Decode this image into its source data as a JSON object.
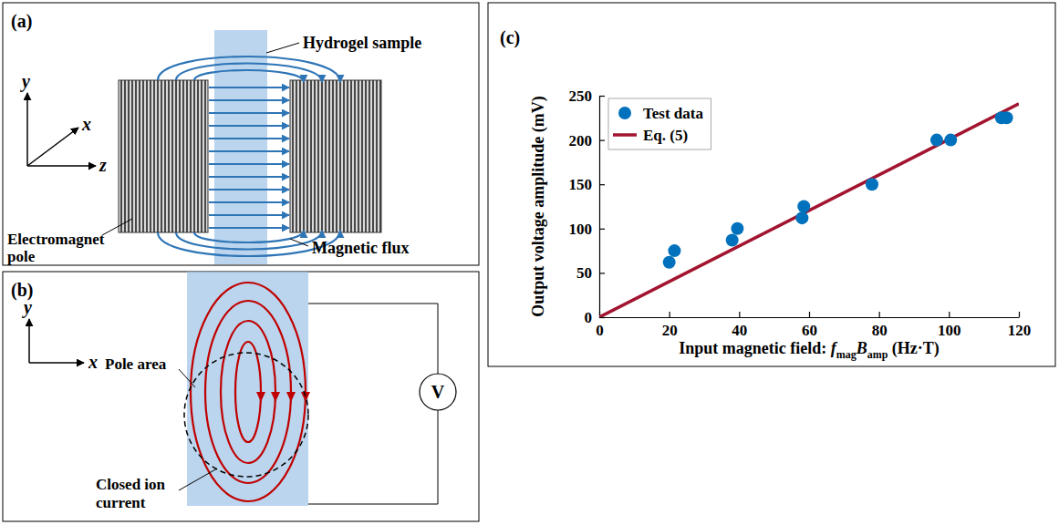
{
  "panel_a": {
    "label": "(a)",
    "axes": {
      "y": "y",
      "x": "x",
      "z": "z"
    },
    "hydrogel": "Hydrogel sample",
    "pole": "Electromagnet pole",
    "flux": "Magnetic flux"
  },
  "panel_b": {
    "label": "(b)",
    "axes": {
      "y": "y",
      "x": "x"
    },
    "pole_area": "Pole area",
    "current": "Closed ion current",
    "meter": "V"
  },
  "chart_data": {
    "type": "scatter",
    "panel_label": "(c)",
    "xlabel": [
      "Input magnetic field: ",
      "f",
      "mag",
      "B",
      "amp",
      " (Hz·T)"
    ],
    "ylabel": "Output voltage amplitude (mV)",
    "xlim": [
      0,
      120
    ],
    "ylim": [
      0,
      250
    ],
    "xticks": [
      0,
      20,
      40,
      60,
      80,
      100,
      120
    ],
    "yticks": [
      0,
      50,
      100,
      150,
      200,
      250
    ],
    "legend": "upper left",
    "series": [
      {
        "name": "Test data",
        "type": "scatter",
        "color": "#0072bd",
        "marker": "circle",
        "x": [
          20,
          21.5,
          38,
          39.5,
          58,
          58.5,
          78,
          96.5,
          100.5,
          115,
          116.5
        ],
        "values": [
          62,
          75,
          87,
          100,
          112,
          125,
          150,
          200,
          200,
          225,
          225
        ]
      },
      {
        "name": "Eq. (5)",
        "type": "line",
        "color": "#a2142f",
        "line_style": "solid",
        "x": [
          0,
          120
        ],
        "values": [
          0,
          241
        ]
      }
    ]
  }
}
